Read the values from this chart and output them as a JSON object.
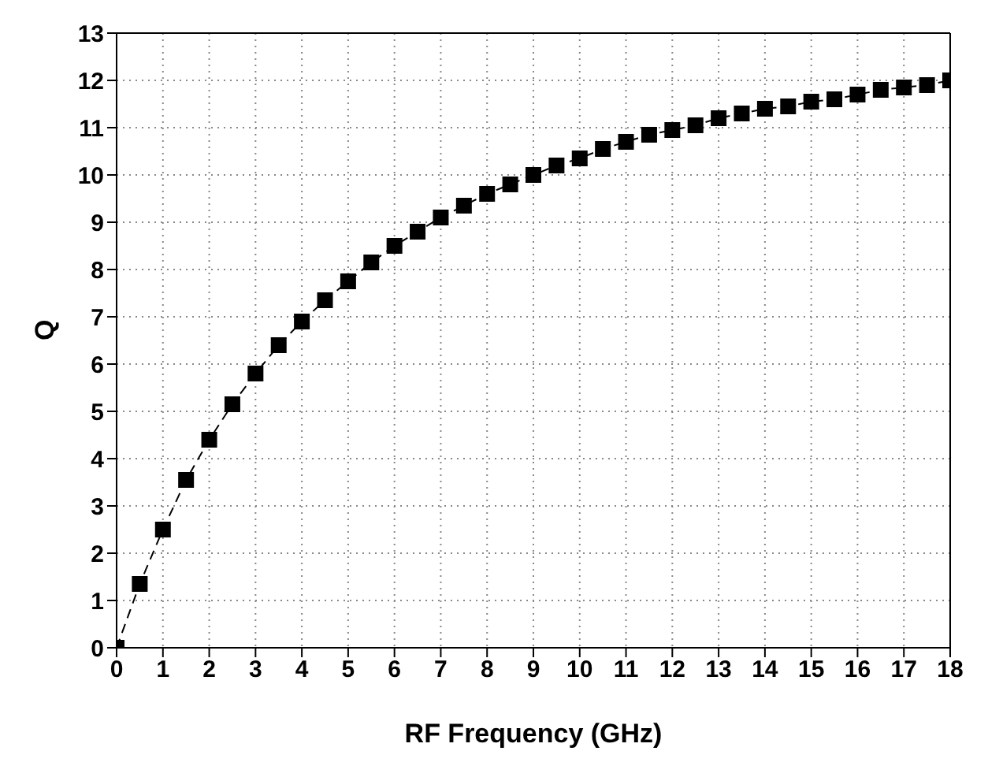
{
  "chart_data": {
    "type": "line",
    "xlabel": "RF Frequency (GHz)",
    "ylabel": "Q",
    "x": [
      0,
      0.5,
      1,
      1.5,
      2,
      2.5,
      3,
      3.5,
      4,
      4.5,
      5,
      5.5,
      6,
      6.5,
      7,
      7.5,
      8,
      8.5,
      9,
      9.5,
      10,
      10.5,
      11,
      11.5,
      12,
      12.5,
      13,
      13.5,
      14,
      14.5,
      15,
      15.5,
      16,
      16.5,
      17,
      17.5,
      18
    ],
    "series": [
      {
        "color": "#000000",
        "values": [
          0,
          1.35,
          2.5,
          3.55,
          4.4,
          5.15,
          5.8,
          6.4,
          6.9,
          7.35,
          7.75,
          8.15,
          8.5,
          8.8,
          9.1,
          9.35,
          9.6,
          9.8,
          10.0,
          10.2,
          10.35,
          10.55,
          10.7,
          10.85,
          10.95,
          11.05,
          11.2,
          11.3,
          11.4,
          11.45,
          11.55,
          11.6,
          11.7,
          11.8,
          11.85,
          11.9,
          12.0
        ]
      }
    ],
    "xlim": [
      0,
      18
    ],
    "xticks": [
      0,
      1,
      2,
      3,
      4,
      5,
      6,
      7,
      8,
      9,
      10,
      11,
      12,
      13,
      14,
      15,
      16,
      17,
      18
    ],
    "ylim": [
      0,
      13
    ],
    "yticks": [
      0,
      1,
      2,
      3,
      4,
      5,
      6,
      7,
      8,
      9,
      10,
      11,
      12,
      13
    ],
    "grid": true,
    "legend": false,
    "marker": "square",
    "line_style": "dashed"
  }
}
